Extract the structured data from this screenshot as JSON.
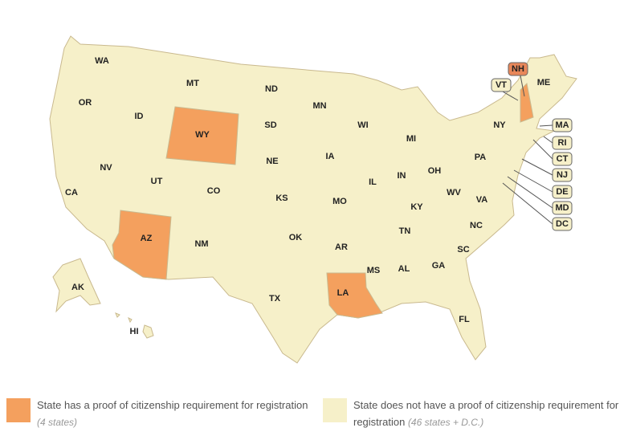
{
  "legend": {
    "items": [
      {
        "color": "#f4a05e",
        "label": "State has a proof of citizenship requirement for registration",
        "note": "(4 states)",
        "states": [
          "AZ",
          "LA",
          "NH",
          "WY"
        ]
      },
      {
        "color": "#f6f0c9",
        "label": "State does not have a proof of citizenship requirement for registration",
        "note": "(46 states + D.C.)",
        "states": [
          "WA",
          "OR",
          "ID",
          "MT",
          "ND",
          "SD",
          "NV",
          "UT",
          "CO",
          "CA",
          "NE",
          "KS",
          "MN",
          "IA",
          "WI",
          "MI",
          "IL",
          "IN",
          "OH",
          "PA",
          "NY",
          "ME",
          "VT",
          "MA",
          "RI",
          "CT",
          "NJ",
          "DE",
          "MD",
          "DC",
          "MO",
          "KY",
          "WV",
          "VA",
          "NC",
          "TN",
          "AR",
          "OK",
          "TX",
          "NM",
          "MS",
          "AL",
          "GA",
          "SC",
          "FL",
          "AK",
          "HI"
        ]
      }
    ]
  }
}
